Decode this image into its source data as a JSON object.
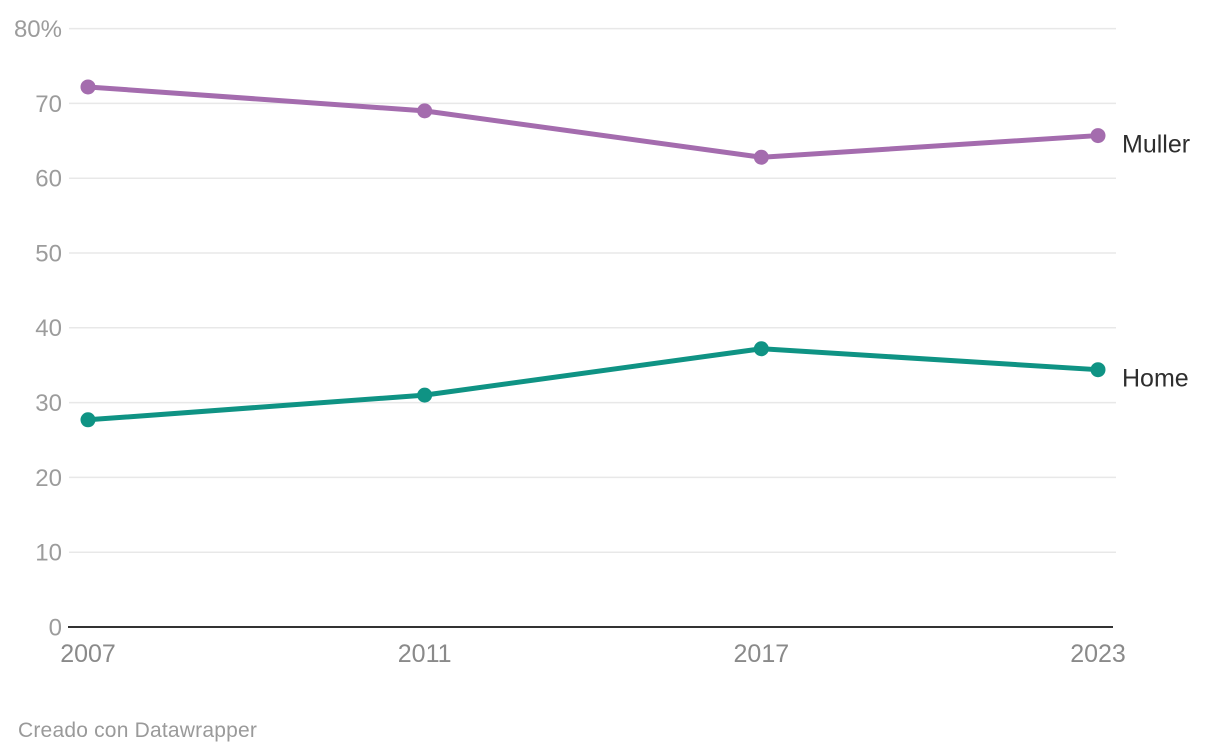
{
  "chart_data": {
    "type": "line",
    "title": "",
    "categories": [
      "2007",
      "2011",
      "2017",
      "2023"
    ],
    "series": [
      {
        "name": "Muller",
        "color": "#a46cae",
        "values": [
          72.2,
          69.0,
          62.8,
          65.7
        ]
      },
      {
        "name": "Home",
        "color": "#0f9384",
        "values": [
          27.7,
          31.0,
          37.2,
          34.4
        ]
      }
    ],
    "unit": "%",
    "ylim": [
      0,
      80
    ],
    "yticks": [
      0,
      10,
      20,
      30,
      40,
      50,
      60,
      70,
      80
    ],
    "ytick_labels": [
      "0",
      "10",
      "20",
      "30",
      "40",
      "50",
      "60",
      "70",
      "80%"
    ],
    "xlabel": "",
    "ylabel": "",
    "grid": true,
    "x_axis_spacing": "categorical-equal",
    "legend_position": "labels-at-line-end"
  },
  "footer": {
    "credit": "Creado con Datawrapper"
  },
  "colors": {
    "background": "#ffffff",
    "grid": "#e8e8e8",
    "axis_line": "#333333",
    "ytick_label": "#9c9c9c",
    "xtick_label": "#8a8a8a",
    "series_label": "#2e2e2e",
    "footer_text": "#9a9a9a"
  }
}
